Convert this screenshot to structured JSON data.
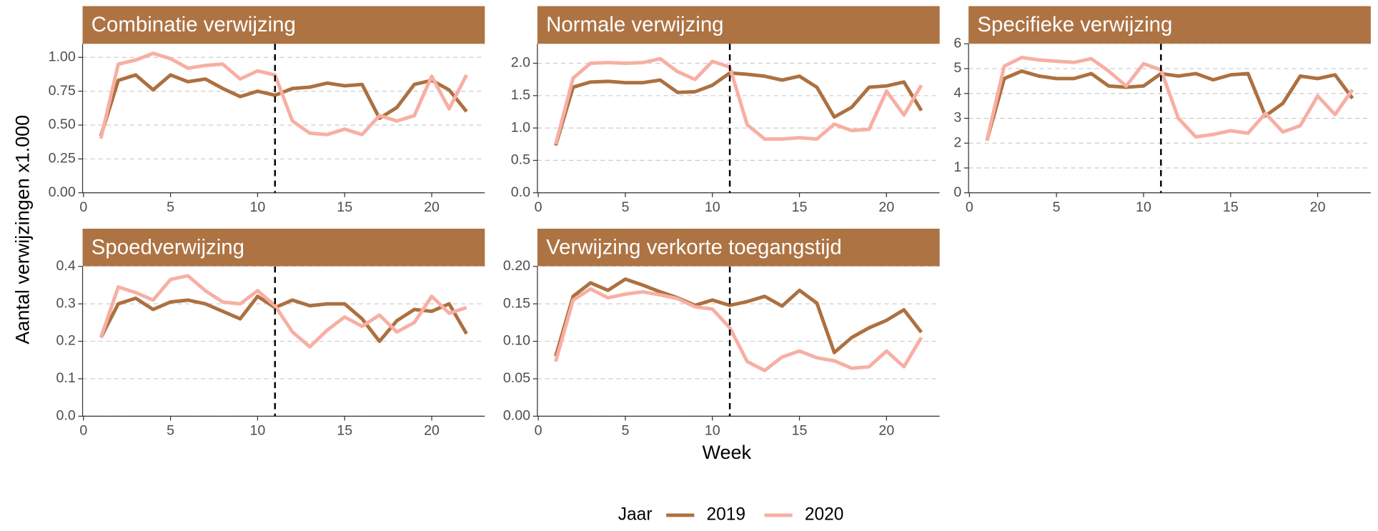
{
  "chart_data": [
    {
      "type": "line",
      "title": "Combinatie verwijzing",
      "x": [
        1,
        2,
        3,
        4,
        5,
        6,
        7,
        8,
        9,
        10,
        11,
        12,
        13,
        14,
        15,
        16,
        17,
        18,
        19,
        20,
        21,
        22
      ],
      "series": [
        {
          "name": "2019",
          "color": "#ad7040",
          "values": [
            0.42,
            0.83,
            0.87,
            0.76,
            0.87,
            0.82,
            0.84,
            0.77,
            0.71,
            0.75,
            0.72,
            0.77,
            0.78,
            0.81,
            0.79,
            0.8,
            0.55,
            0.63,
            0.8,
            0.83,
            0.76,
            0.6
          ]
        },
        {
          "name": "2020",
          "color": "#f7afa3",
          "values": [
            0.4,
            0.95,
            0.98,
            1.03,
            0.99,
            0.92,
            0.94,
            0.95,
            0.84,
            0.9,
            0.87,
            0.53,
            0.44,
            0.43,
            0.47,
            0.43,
            0.57,
            0.53,
            0.57,
            0.86,
            0.62,
            0.87
          ]
        }
      ],
      "xlim": [
        -0.05,
        23.05
      ],
      "xticks": [
        0,
        5,
        10,
        15,
        20
      ],
      "ylim": [
        0,
        1.1
      ],
      "yticks": [
        {
          "value": 0,
          "label": "0.00"
        },
        {
          "value": 0.25,
          "label": "0.25"
        },
        {
          "value": 0.5,
          "label": "0.50"
        },
        {
          "value": 0.75,
          "label": "0.75"
        },
        {
          "value": 1,
          "label": "1.00"
        }
      ],
      "vline": 11,
      "grid": true
    },
    {
      "type": "line",
      "title": "Normale verwijzing",
      "x": [
        1,
        2,
        3,
        4,
        5,
        6,
        7,
        8,
        9,
        10,
        11,
        12,
        13,
        14,
        15,
        16,
        17,
        18,
        19,
        20,
        21,
        22
      ],
      "series": [
        {
          "name": "2019",
          "color": "#ad7040",
          "values": [
            0.73,
            1.63,
            1.71,
            1.72,
            1.7,
            1.7,
            1.74,
            1.55,
            1.56,
            1.66,
            1.85,
            1.83,
            1.8,
            1.74,
            1.8,
            1.63,
            1.17,
            1.32,
            1.63,
            1.65,
            1.71,
            1.27
          ]
        },
        {
          "name": "2020",
          "color": "#f7afa3",
          "values": [
            0.75,
            1.77,
            2.0,
            2.01,
            2.0,
            2.01,
            2.07,
            1.87,
            1.75,
            2.03,
            1.94,
            1.05,
            0.83,
            0.83,
            0.85,
            0.83,
            1.06,
            0.96,
            0.98,
            1.57,
            1.2,
            1.66
          ]
        }
      ],
      "xlim": [
        -0.05,
        23.05
      ],
      "xticks": [
        0,
        5,
        10,
        15,
        20
      ],
      "ylim": [
        0,
        2.3
      ],
      "yticks": [
        {
          "value": 0,
          "label": "0.0"
        },
        {
          "value": 0.5,
          "label": "0.5"
        },
        {
          "value": 1,
          "label": "1.0"
        },
        {
          "value": 1.5,
          "label": "1.5"
        },
        {
          "value": 2,
          "label": "2.0"
        }
      ],
      "vline": 11,
      "grid": true
    },
    {
      "type": "line",
      "title": "Specifieke verwijzing",
      "x": [
        1,
        2,
        3,
        4,
        5,
        6,
        7,
        8,
        9,
        10,
        11,
        12,
        13,
        14,
        15,
        16,
        17,
        18,
        19,
        20,
        21,
        22
      ],
      "series": [
        {
          "name": "2019",
          "color": "#ad7040",
          "values": [
            2.1,
            4.6,
            4.9,
            4.7,
            4.6,
            4.6,
            4.8,
            4.3,
            4.25,
            4.3,
            4.8,
            4.7,
            4.8,
            4.55,
            4.75,
            4.8,
            3.1,
            3.6,
            4.7,
            4.6,
            4.75,
            3.8
          ]
        },
        {
          "name": "2020",
          "color": "#f7afa3",
          "values": [
            2.1,
            5.1,
            5.45,
            5.35,
            5.3,
            5.25,
            5.4,
            4.9,
            4.3,
            5.2,
            4.95,
            3.0,
            2.25,
            2.35,
            2.5,
            2.4,
            3.2,
            2.45,
            2.7,
            3.9,
            3.15,
            4.15
          ]
        }
      ],
      "xlim": [
        -0.05,
        23.05
      ],
      "xticks": [
        0,
        5,
        10,
        15,
        20
      ],
      "ylim": [
        0,
        6
      ],
      "yticks": [
        0,
        1,
        2,
        3,
        4,
        5,
        6
      ],
      "vline": 11,
      "grid": true
    },
    {
      "type": "line",
      "title": "Spoedverwijzing",
      "x": [
        1,
        2,
        3,
        4,
        5,
        6,
        7,
        8,
        9,
        10,
        11,
        12,
        13,
        14,
        15,
        16,
        17,
        18,
        19,
        20,
        21,
        22
      ],
      "series": [
        {
          "name": "2019",
          "color": "#ad7040",
          "values": [
            0.21,
            0.3,
            0.315,
            0.285,
            0.305,
            0.31,
            0.3,
            0.28,
            0.26,
            0.32,
            0.29,
            0.31,
            0.295,
            0.3,
            0.3,
            0.26,
            0.2,
            0.255,
            0.285,
            0.28,
            0.3,
            0.22
          ]
        },
        {
          "name": "2020",
          "color": "#f7afa3",
          "values": [
            0.21,
            0.345,
            0.33,
            0.31,
            0.365,
            0.375,
            0.335,
            0.305,
            0.3,
            0.335,
            0.295,
            0.225,
            0.185,
            0.23,
            0.265,
            0.24,
            0.27,
            0.225,
            0.25,
            0.32,
            0.275,
            0.29
          ]
        }
      ],
      "xlim": [
        -0.05,
        23.05
      ],
      "xticks": [
        0,
        5,
        10,
        15,
        20
      ],
      "ylim": [
        0,
        0.4
      ],
      "yticks": [
        {
          "value": 0,
          "label": "0.0"
        },
        0.1,
        0.2,
        0.3,
        0.4
      ],
      "vline": 11,
      "grid": true
    },
    {
      "type": "line",
      "title": "Verwijzing verkorte toegangstijd",
      "x": [
        1,
        2,
        3,
        4,
        5,
        6,
        7,
        8,
        9,
        10,
        11,
        12,
        13,
        14,
        15,
        16,
        17,
        18,
        19,
        20,
        21,
        22
      ],
      "series": [
        {
          "name": "2019",
          "color": "#ad7040",
          "values": [
            0.08,
            0.16,
            0.178,
            0.168,
            0.183,
            0.175,
            0.166,
            0.158,
            0.148,
            0.155,
            0.148,
            0.153,
            0.16,
            0.147,
            0.168,
            0.151,
            0.085,
            0.105,
            0.118,
            0.128,
            0.142,
            0.112
          ]
        },
        {
          "name": "2020",
          "color": "#f7afa3",
          "values": [
            0.073,
            0.155,
            0.17,
            0.158,
            0.163,
            0.166,
            0.162,
            0.157,
            0.146,
            0.143,
            0.118,
            0.073,
            0.061,
            0.079,
            0.087,
            0.078,
            0.074,
            0.064,
            0.066,
            0.087,
            0.066,
            0.105
          ]
        }
      ],
      "xlim": [
        -0.05,
        23.05
      ],
      "xticks": [
        0,
        5,
        10,
        15,
        20
      ],
      "ylim": [
        0,
        0.2
      ],
      "yticks": [
        {
          "value": 0,
          "label": "0.00"
        },
        {
          "value": 0.05,
          "label": "0.05"
        },
        {
          "value": 0.1,
          "label": "0.10"
        },
        {
          "value": 0.15,
          "label": "0.15"
        },
        {
          "value": 0.2,
          "label": "0.20"
        }
      ],
      "vline": 11,
      "grid": true
    }
  ],
  "x_label": "Week",
  "y_label": "Aantal verwijzingen x1.000",
  "legend": {
    "title": "Jaar"
  }
}
